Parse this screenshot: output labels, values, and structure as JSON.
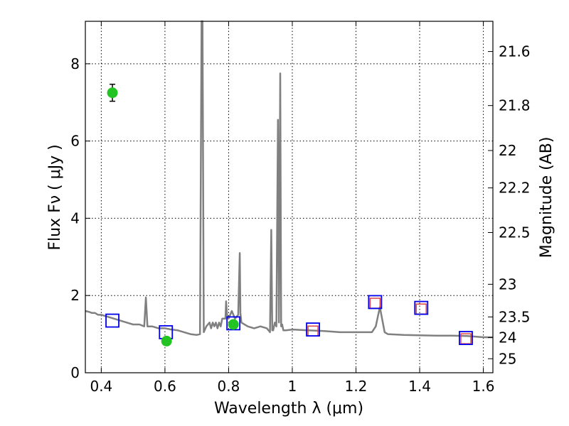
{
  "chart_data": {
    "type": "line",
    "xlabel": "Wavelength  λ (μm)",
    "ylabel": "Flux  Fν  ( μJy )",
    "y2label": "Magnitude (AB)",
    "xlim": [
      0.35,
      1.63
    ],
    "ylim": [
      0,
      9.1
    ],
    "grid": true,
    "colors": {
      "spectrum": "#808080",
      "observed": "#22c322",
      "model_box": "#0000ee",
      "synthetic_box": "#dd4444",
      "grid": "#000000"
    },
    "xticks": [
      {
        "value": 0.4,
        "label": "0.4"
      },
      {
        "value": 0.6,
        "label": "0.6"
      },
      {
        "value": 0.8,
        "label": "0.8"
      },
      {
        "value": 1.0,
        "label": "1"
      },
      {
        "value": 1.2,
        "label": "1.2"
      },
      {
        "value": 1.4,
        "label": "1.4"
      },
      {
        "value": 1.6,
        "label": "1.6"
      }
    ],
    "yticks": [
      {
        "value": 0,
        "label": "0"
      },
      {
        "value": 2,
        "label": "2"
      },
      {
        "value": 4,
        "label": "4"
      },
      {
        "value": 6,
        "label": "6"
      },
      {
        "value": 8,
        "label": "8"
      }
    ],
    "y2ticks": [
      {
        "mag": 21.6,
        "label": "21.6"
      },
      {
        "mag": 21.8,
        "label": "21.8"
      },
      {
        "mag": 22.0,
        "label": "22"
      },
      {
        "mag": 22.2,
        "label": "22.2"
      },
      {
        "mag": 22.5,
        "label": "22.5"
      },
      {
        "mag": 23.0,
        "label": "23"
      },
      {
        "mag": 23.5,
        "label": "23.5"
      },
      {
        "mag": 24.0,
        "label": "24"
      },
      {
        "mag": 25.0,
        "label": "25"
      }
    ],
    "spectrum": {
      "x": [
        0.35,
        0.36,
        0.37,
        0.38,
        0.39,
        0.4,
        0.42,
        0.44,
        0.46,
        0.48,
        0.5,
        0.52,
        0.535,
        0.54,
        0.545,
        0.56,
        0.58,
        0.6,
        0.62,
        0.64,
        0.66,
        0.68,
        0.7,
        0.71,
        0.715,
        0.718,
        0.722,
        0.73,
        0.74,
        0.745,
        0.75,
        0.755,
        0.76,
        0.765,
        0.77,
        0.775,
        0.78,
        0.79,
        0.792,
        0.795,
        0.8,
        0.81,
        0.82,
        0.83,
        0.835,
        0.837,
        0.84,
        0.86,
        0.88,
        0.9,
        0.92,
        0.93,
        0.934,
        0.937,
        0.94,
        0.945,
        0.95,
        0.955,
        0.958,
        0.962,
        0.965,
        0.968,
        0.972,
        0.98,
        1.0,
        1.05,
        1.1,
        1.15,
        1.2,
        1.25,
        1.262,
        1.275,
        1.29,
        1.3,
        1.35,
        1.4,
        1.45,
        1.5,
        1.55,
        1.6,
        1.63
      ],
      "y": [
        1.6,
        1.58,
        1.55,
        1.55,
        1.5,
        1.5,
        1.45,
        1.4,
        1.35,
        1.3,
        1.25,
        1.25,
        1.2,
        1.95,
        1.2,
        1.2,
        1.15,
        1.15,
        1.12,
        1.1,
        1.05,
        1.0,
        0.98,
        1.0,
        9.1,
        9.1,
        1.05,
        1.2,
        1.3,
        1.15,
        1.3,
        1.2,
        1.3,
        1.15,
        1.3,
        1.2,
        1.4,
        1.4,
        1.85,
        1.5,
        1.4,
        1.6,
        1.4,
        1.5,
        3.1,
        1.55,
        1.3,
        1.2,
        1.15,
        1.2,
        1.15,
        1.05,
        3.7,
        1.1,
        1.1,
        1.3,
        1.2,
        6.55,
        1.3,
        7.75,
        1.2,
        1.25,
        1.1,
        1.1,
        1.12,
        1.1,
        1.08,
        1.05,
        1.05,
        1.05,
        1.2,
        1.7,
        1.05,
        1.0,
        0.98,
        0.97,
        0.96,
        0.96,
        0.95,
        0.92,
        0.92
      ]
    },
    "observed_points": [
      {
        "x": 0.435,
        "y": 7.25,
        "err": 0.22
      },
      {
        "x": 0.605,
        "y": 0.82,
        "err": 0.08
      },
      {
        "x": 0.815,
        "y": 1.25,
        "err": 0.1
      }
    ],
    "model_boxes": [
      {
        "x": 0.435,
        "y": 1.35
      },
      {
        "x": 0.603,
        "y": 1.05
      },
      {
        "x": 0.815,
        "y": 1.28
      },
      {
        "x": 1.065,
        "y": 1.12
      },
      {
        "x": 1.26,
        "y": 1.83
      },
      {
        "x": 1.405,
        "y": 1.68
      },
      {
        "x": 1.545,
        "y": 0.9
      }
    ],
    "synthetic_boxes": [
      {
        "x": 1.065,
        "y": 1.08
      },
      {
        "x": 1.26,
        "y": 1.8
      },
      {
        "x": 1.405,
        "y": 1.65
      },
      {
        "x": 1.545,
        "y": 0.88
      }
    ]
  }
}
